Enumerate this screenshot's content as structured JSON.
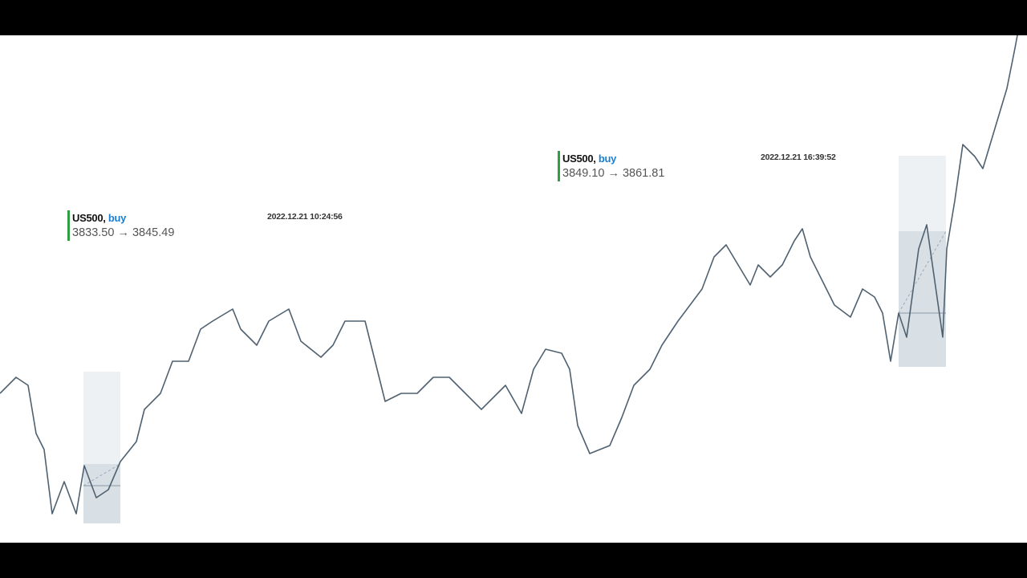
{
  "trades": [
    {
      "heading": "US500,",
      "side": "buy",
      "entry": "3833.50",
      "arrow": "→",
      "exit": "3845.49",
      "time": "2022.12.21 10:24:56"
    },
    {
      "heading": "US500,",
      "side": "buy",
      "entry": "3849.10",
      "arrow": "→",
      "exit": "3861.81",
      "time": "2022.12.21 16:39:52"
    }
  ]
}
